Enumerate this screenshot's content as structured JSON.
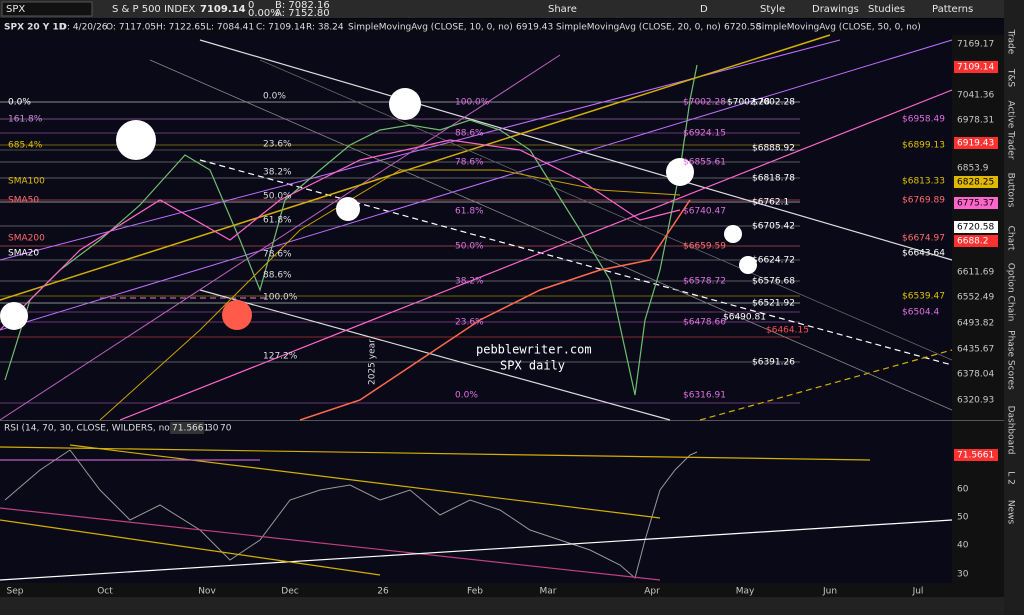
{
  "toolbar": {
    "symbol": "SPX",
    "description": "S & P 500 INDEX",
    "last": "7109.14",
    "change": "0",
    "change_pct": "0.00%",
    "bid": "B: 7082.16",
    "ask": "A: 7152.80",
    "buttons": [
      "Share",
      "D",
      "Style",
      "Drawings",
      "Studies",
      "Patterns"
    ]
  },
  "header": {
    "chart": "SPX 20 Y 1D",
    "date": "D: 4/20/26",
    "open": "O: 7117.05",
    "high": "H: 7122.65",
    "low": "L: 7084.41",
    "close": "C: 7109.14",
    "range": "R: 38.24",
    "studies": [
      {
        "name": "SimpleMovingAvg (CLOSE, 10, 0, no)",
        "value": "6919.43"
      },
      {
        "name": "SimpleMovingAvg (CLOSE, 20, 0, no)",
        "value": "6720.58"
      },
      {
        "name": "SimpleMovingAvg (CLOSE, 50, 0, no)"
      }
    ]
  },
  "price_axis": {
    "ticks": [
      "7169.17",
      "7041.36",
      "6978.31",
      "6853.9",
      "6611.69",
      "6552.49",
      "6493.82",
      "6435.67",
      "6378.04",
      "6320.93"
    ],
    "markers": [
      "7109.14",
      "6919.43",
      "6828.25",
      "6775.37",
      "6720.58",
      "6688.2"
    ]
  },
  "fib_left": [
    "0.0%",
    "161.8%",
    "685.4%",
    "SMA100",
    "SMA50",
    "SMA200",
    "SMA20"
  ],
  "fib_mid": [
    "0.0%",
    "23.6%",
    "38.2%",
    "50.0%",
    "61.8%",
    "78.6%",
    "88.6%",
    "100.0%",
    "127.2%"
  ],
  "fib_right": [
    "100.0%",
    "88.6%",
    "78.6%",
    "61.8%",
    "50.0%",
    "38.2%",
    "23.6%",
    "0.0%"
  ],
  "price_levels": [
    "$7002.28",
    "$7002.28",
    "$7002.28",
    "$6958.49",
    "$6924.15",
    "$6899.13",
    "$6888.92",
    "$6855.61",
    "$6818.78",
    "$6813.33",
    "$6769.89",
    "$6762.1",
    "$6740.47",
    "$6705.42",
    "$6674.97",
    "$6659.59",
    "$6643.64",
    "$6624.72",
    "$6578.72",
    "$6576.68",
    "$6539.47",
    "$6521.92",
    "$6504.4",
    "$6490.81",
    "$6478.66",
    "$6464.15",
    "$6391.26",
    "$6316.91"
  ],
  "watermark": {
    "site": "pebblewriter.com",
    "label": "SPX daily",
    "year": "2025 year"
  },
  "rsi": {
    "title": "RSI (14, 70, 30, CLOSE, WILDERS, no)",
    "value": "71.5661",
    "oversold": "30",
    "overbought": "70",
    "axis": [
      "60",
      "50",
      "40",
      "30"
    ],
    "marker": "71.5661"
  },
  "time_axis": [
    "Sep",
    "Oct",
    "Nov",
    "Dec",
    "26",
    "Feb",
    "Mar",
    "Apr",
    "May",
    "Jun",
    "Jul"
  ],
  "side_tabs": [
    "Trade",
    "T&S",
    "Active Trader",
    "Buttons",
    "Chart",
    "Option Chain",
    "Phase Scores",
    "Dashboard",
    "L 2",
    "News"
  ]
}
